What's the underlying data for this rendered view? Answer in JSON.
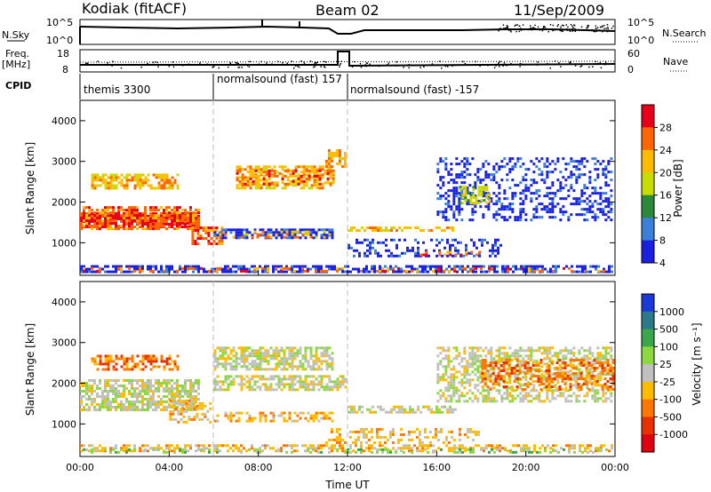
{
  "header": {
    "radar": "Kodiak (fitACF)",
    "beam": "Beam 02",
    "date": "11/Sep/2009"
  },
  "sky_panel": {
    "left_label": "N.Sky",
    "left_ticks": [
      "10^5",
      "10^0"
    ],
    "right_ticks": [
      "10^5",
      "10^0"
    ],
    "right_label": "N.Search"
  },
  "freq_panel": {
    "left_label_1": "Freq.",
    "left_label_2": "[MHz]",
    "left_ticks": [
      "18",
      "8"
    ],
    "right_ticks": [
      "60",
      "0"
    ],
    "right_label": "Nave"
  },
  "cpid": {
    "label": "CPID",
    "segments": [
      {
        "name": "themis 3300",
        "start_hour": 0
      },
      {
        "name": "normalsound (fast) 157",
        "start_hour": 6
      },
      {
        "name": "normalsound (fast) -157",
        "start_hour": 12
      }
    ]
  },
  "chart_data": [
    {
      "type": "heatmap",
      "name": "Power",
      "ylabel": "Slant Range [km]",
      "xlabel": "Time UT",
      "xlim_hours": [
        0,
        24
      ],
      "ylim_km": [
        200,
        4500
      ],
      "y_ticks": [
        "1000",
        "2000",
        "3000",
        "4000"
      ],
      "colorbar_label": "Power [dB]",
      "colorbar_ticks": [
        "28",
        "24",
        "20",
        "16",
        "12",
        "8",
        "4"
      ],
      "colors": [
        "#e8001a",
        "#ff6600",
        "#ffbb00",
        "#c8dc00",
        "#2a8a3a",
        "#3a7fd8",
        "#1a20e0"
      ]
    },
    {
      "type": "heatmap",
      "name": "Velocity",
      "ylabel": "Slant Range [km]",
      "xlabel": "Time UT",
      "xlim_hours": [
        0,
        24
      ],
      "ylim_km": [
        200,
        4500
      ],
      "y_ticks": [
        "1000",
        "2000",
        "3000",
        "4000"
      ],
      "x_ticks": [
        "00:00",
        "04:00",
        "08:00",
        "12:00",
        "16:00",
        "20:00",
        "00:00"
      ],
      "colorbar_label": "Velocity [m s⁻¹]",
      "colorbar_ticks": [
        "1000",
        "500",
        "100",
        "25",
        "-25",
        "-100",
        "-500",
        "-1000"
      ],
      "colors": [
        "#1a3ad8",
        "#2a7a8a",
        "#3aa84a",
        "#8cd840",
        "#c0c0c0",
        "#ffbb00",
        "#ff7700",
        "#e83000",
        "#e00010"
      ]
    }
  ]
}
